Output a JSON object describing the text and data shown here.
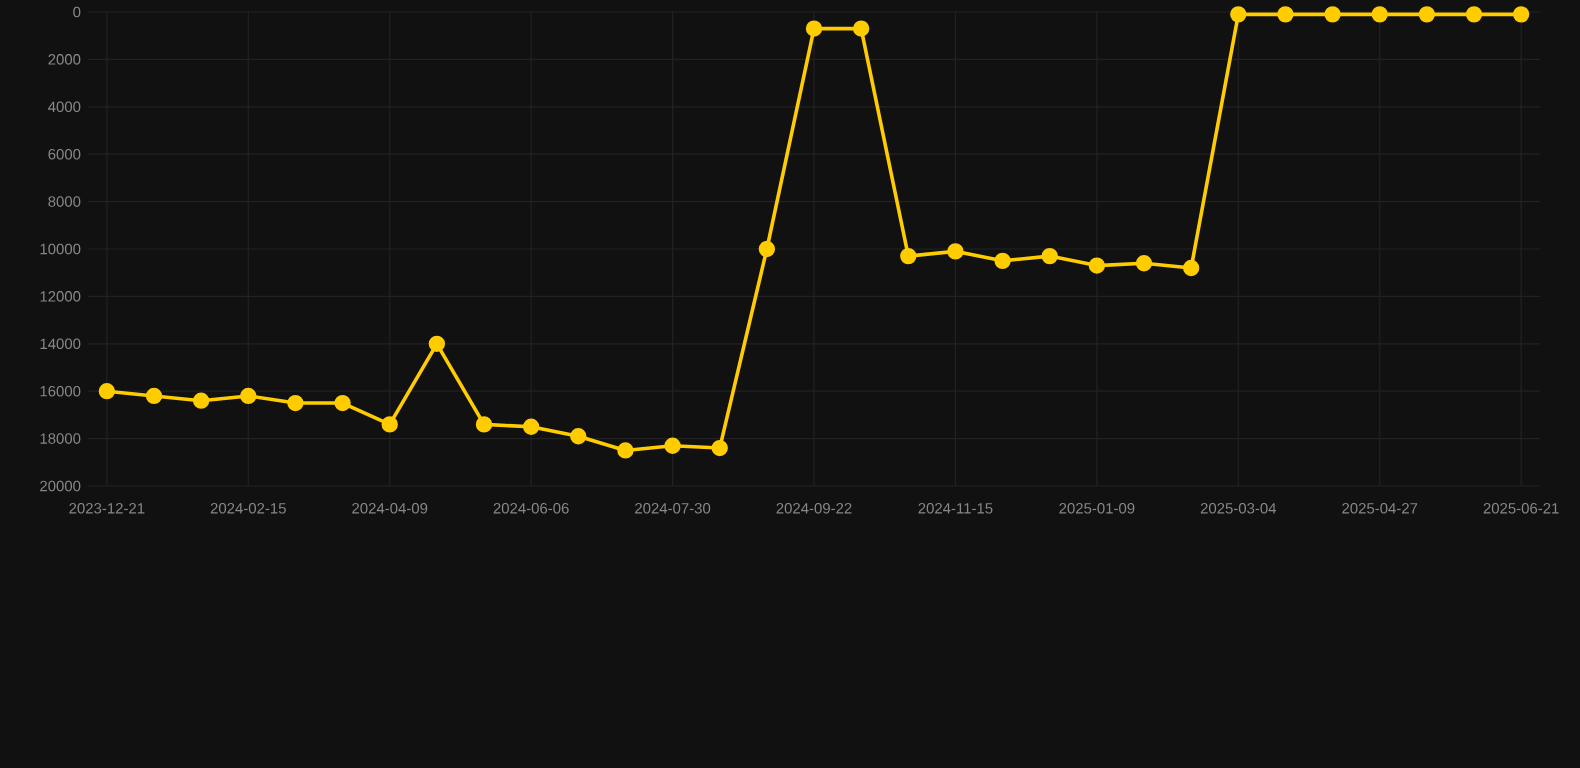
{
  "chart_data": {
    "type": "line",
    "categories": [
      "2023-12-21",
      null,
      null,
      "2024-02-15",
      null,
      null,
      "2024-04-09",
      null,
      null,
      "2024-06-06",
      null,
      null,
      "2024-07-30",
      null,
      null,
      "2024-09-22",
      null,
      null,
      "2024-11-15",
      null,
      null,
      "2025-01-09",
      null,
      null,
      "2025-03-04",
      null,
      null,
      "2025-04-27",
      null,
      null,
      "2025-06-21"
    ],
    "series": [
      {
        "color": "#ffcc00",
        "values": [
          16000,
          16200,
          16400,
          16200,
          16500,
          16500,
          17400,
          14000,
          17400,
          17500,
          17900,
          18500,
          18300,
          18400,
          10000,
          700,
          700,
          10300,
          10100,
          10500,
          10300,
          10700,
          10600,
          10800,
          100,
          100,
          100,
          100,
          100,
          100,
          100
        ]
      }
    ],
    "ylim": [
      20000,
      0
    ],
    "yticks": [
      0,
      2000,
      4000,
      6000,
      8000,
      10000,
      12000,
      14000,
      16000,
      18000,
      20000
    ],
    "grid": true,
    "marker": "circle",
    "line_style": "solid"
  }
}
